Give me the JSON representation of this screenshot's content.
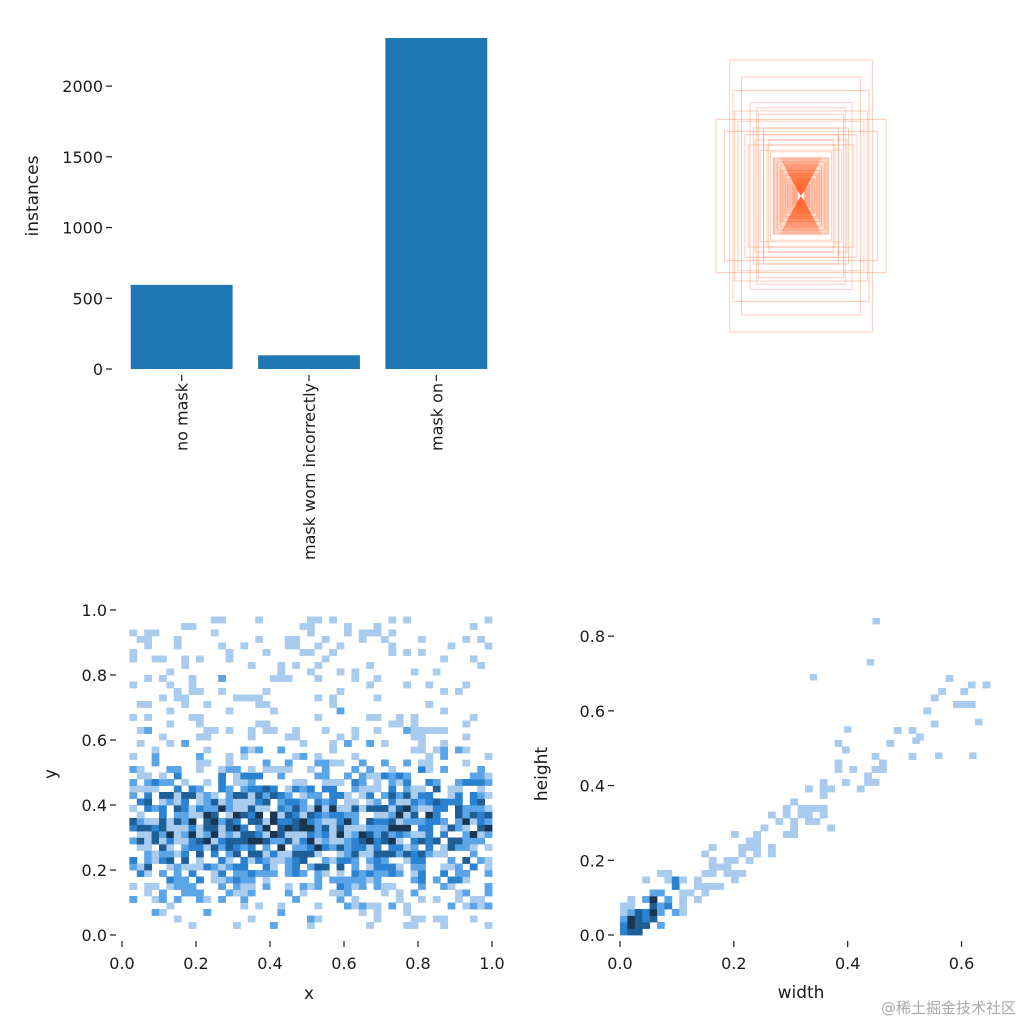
{
  "watermark": "@稀土掘金技术社区",
  "chart_data": [
    {
      "type": "bar",
      "categories": [
        "no mask",
        "mask worn incorrectly",
        "mask on"
      ],
      "values": [
        595,
        97,
        2340
      ],
      "xlabel": "",
      "ylabel": "instances",
      "ylim": [
        0,
        2340
      ],
      "yticks": [
        0,
        500,
        1000,
        1500,
        2000
      ],
      "color": "#1f77b4"
    },
    {
      "type": "box-overlay",
      "description_text": "",
      "color": "#ff5a1f",
      "boxes_wh": [
        [
          0.42,
          0.8
        ],
        [
          0.4,
          0.62
        ],
        [
          0.5,
          0.45
        ],
        [
          0.35,
          0.7
        ],
        [
          0.3,
          0.55
        ],
        [
          0.28,
          0.4
        ],
        [
          0.25,
          0.48
        ],
        [
          0.22,
          0.36
        ],
        [
          0.2,
          0.3
        ],
        [
          0.18,
          0.26
        ],
        [
          0.16,
          0.22
        ],
        [
          0.14,
          0.2
        ],
        [
          0.12,
          0.18
        ],
        [
          0.11,
          0.15
        ],
        [
          0.1,
          0.13
        ],
        [
          0.09,
          0.12
        ],
        [
          0.08,
          0.1
        ],
        [
          0.07,
          0.09
        ],
        [
          0.06,
          0.08
        ],
        [
          0.05,
          0.07
        ],
        [
          0.045,
          0.06
        ],
        [
          0.04,
          0.05
        ],
        [
          0.035,
          0.045
        ],
        [
          0.03,
          0.04
        ],
        [
          0.025,
          0.035
        ],
        [
          0.02,
          0.03
        ],
        [
          0.33,
          0.36
        ],
        [
          0.31,
          0.3
        ],
        [
          0.27,
          0.33
        ],
        [
          0.24,
          0.27
        ],
        [
          0.22,
          0.4
        ],
        [
          0.19,
          0.33
        ],
        [
          0.37,
          0.44
        ],
        [
          0.26,
          0.52
        ],
        [
          0.45,
          0.38
        ],
        [
          0.39,
          0.5
        ]
      ]
    },
    {
      "type": "heatmap",
      "xlabel": "x",
      "ylabel": "y",
      "xlim": [
        0,
        1
      ],
      "ylim": [
        0,
        1
      ],
      "xticks": [
        0.0,
        0.2,
        0.4,
        0.6,
        0.8,
        1.0
      ],
      "yticks": [
        0.0,
        0.2,
        0.4,
        0.6,
        0.8,
        1.0
      ],
      "bins": 50,
      "color": "#1f77b4"
    },
    {
      "type": "heatmap",
      "xlabel": "width",
      "ylabel": "height",
      "xlim": [
        0,
        0.65
      ],
      "ylim": [
        0,
        0.87
      ],
      "xticks": [
        0.0,
        0.2,
        0.4,
        0.6
      ],
      "yticks": [
        0.0,
        0.2,
        0.4,
        0.6,
        0.8
      ],
      "bins": 50,
      "color": "#1f77b4"
    }
  ]
}
